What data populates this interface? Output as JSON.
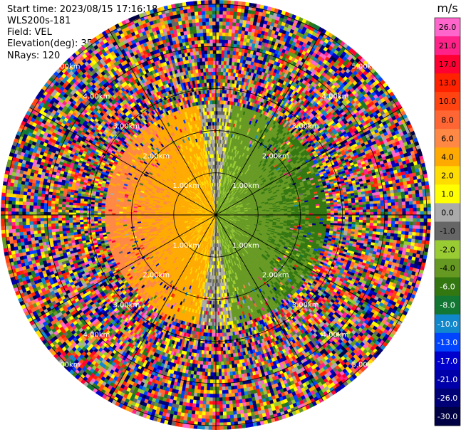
{
  "header": {
    "start_time": "Start time: 2023/08/15 17:16:18",
    "station": "WLS200s-181",
    "field": "Field: VEL",
    "elevation": "Elevation(deg): 35.30",
    "nrays": "NRays: 120"
  },
  "chart_data": {
    "type": "heatmap",
    "subtype": "polar PPI",
    "field": "VEL",
    "unit": "m/s",
    "n_rays": 120,
    "range_rings": [
      {
        "label": "1.00km",
        "range_km": 1
      },
      {
        "label": "2.00km",
        "range_km": 2
      },
      {
        "label": "3.00km",
        "range_km": 3
      },
      {
        "label": "4.00km",
        "range_km": 4
      },
      {
        "label": "5.00km",
        "range_km": 5
      }
    ],
    "max_range_km": 5.1,
    "colorbar": {
      "ticks": [
        "26.0",
        "21.0",
        "17.0",
        "13.0",
        "10.0",
        "8.0",
        "6.0",
        "4.0",
        "2.0",
        "1.0",
        "0.0",
        "-1.0",
        "-2.0",
        "-4.0",
        "-6.0",
        "-8.0",
        "-10.0",
        "-13.0",
        "-17.0",
        "-21.0",
        "-26.0",
        "-30.0"
      ],
      "colors": [
        "#ff66cc",
        "#ff2288",
        "#ff0033",
        "#ff2200",
        "#ff4411",
        "#ff6633",
        "#ff8844",
        "#ffaa00",
        "#ffdd00",
        "#ffff00",
        "#aaaaaa",
        "#666666",
        "#99cc33",
        "#669922",
        "#337711",
        "#117733",
        "#1188cc",
        "#0044ff",
        "#0000cc",
        "#0000aa",
        "#000077",
        "#000044"
      ]
    },
    "spokes_deg": [
      0,
      30,
      60,
      90,
      120,
      150,
      180,
      210,
      240,
      270,
      300,
      330
    ],
    "near_field_km": 2.6,
    "near_field_pattern": "positive velocities (yellow/orange) to the west, negative velocities (green) to the east, near-zero (gray) to the south; noisy random colors beyond ~2.6 km"
  }
}
